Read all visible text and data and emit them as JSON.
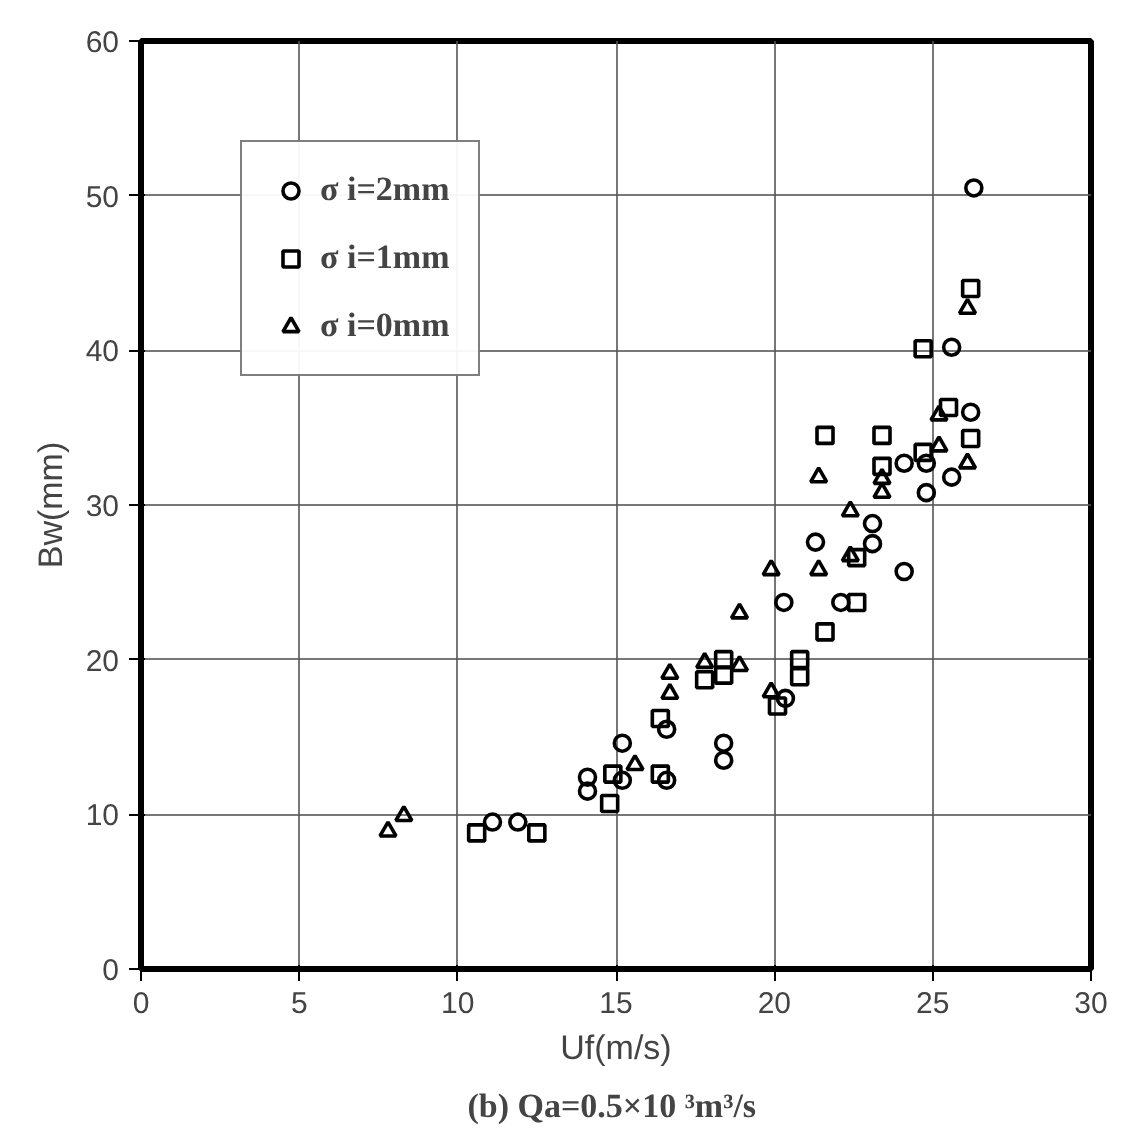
{
  "chart_data": {
    "type": "scatter",
    "xlabel": "Uf(m/s)",
    "ylabel": "Bw(mm)",
    "xlim": [
      0,
      30
    ],
    "ylim": [
      0,
      60
    ],
    "xticks": [
      0,
      5,
      10,
      15,
      20,
      25,
      30
    ],
    "yticks": [
      0,
      10,
      20,
      30,
      40,
      50,
      60
    ],
    "grid": true,
    "legend": "top left",
    "annotations": [
      "(b)  Qa=0.5×10 ³m³/s"
    ],
    "series": [
      {
        "name": "σ i=2mm",
        "color": "#000000",
        "marker": "circle",
        "x": [
          26.3,
          25.6,
          26.2,
          25.6,
          24.1,
          24.8,
          24.8,
          24.1,
          23.1,
          23.1,
          21.3,
          22.1,
          20.3,
          20.35,
          18.4,
          18.4,
          16.6,
          16.6,
          15.2,
          15.2,
          14.1,
          14.1,
          11.1,
          11.9
        ],
        "values": [
          50.5,
          40.2,
          36,
          31.8,
          32.7,
          32.7,
          30.8,
          25.7,
          28.8,
          27.5,
          27.6,
          23.7,
          23.7,
          17.5,
          14.6,
          13.5,
          15.5,
          12.2,
          14.6,
          12.2,
          12.4,
          11.5,
          9.5,
          9.5
        ]
      },
      {
        "name": "σ i=1mm",
        "color": "#000000",
        "marker": "square",
        "x": [
          26.2,
          24.7,
          25.5,
          26.2,
          21.6,
          23.4,
          23.4,
          24.7,
          22.6,
          22.6,
          21.6,
          20.8,
          20.8,
          20.1,
          18.4,
          18.4,
          17.8,
          16.4,
          16.4,
          14.9,
          14.8,
          10.6,
          12.5
        ],
        "values": [
          44,
          40.1,
          36.3,
          34.3,
          34.5,
          34.5,
          32.5,
          33.4,
          23.7,
          26.6,
          21.8,
          20,
          18.9,
          17,
          20,
          19,
          18.7,
          16.2,
          12.6,
          12.6,
          10.7,
          8.8,
          8.8
        ]
      },
      {
        "name": "σ i=0mm",
        "color": "#000000",
        "marker": "triangle",
        "x": [
          26.1,
          25.2,
          25.2,
          26.1,
          21.4,
          23.4,
          23.4,
          22.4,
          22.4,
          21.4,
          19.9,
          18.9,
          17.8,
          18.9,
          16.7,
          16.7,
          19.9,
          15.6,
          7.8,
          8.3
        ],
        "values": [
          42.7,
          35.8,
          33.8,
          32.7,
          31.8,
          31.7,
          30.8,
          29.6,
          26.7,
          25.8,
          25.8,
          23,
          19.8,
          19.6,
          19.1,
          17.8,
          17.9,
          13.2,
          8.9,
          9.9
        ]
      }
    ]
  }
}
